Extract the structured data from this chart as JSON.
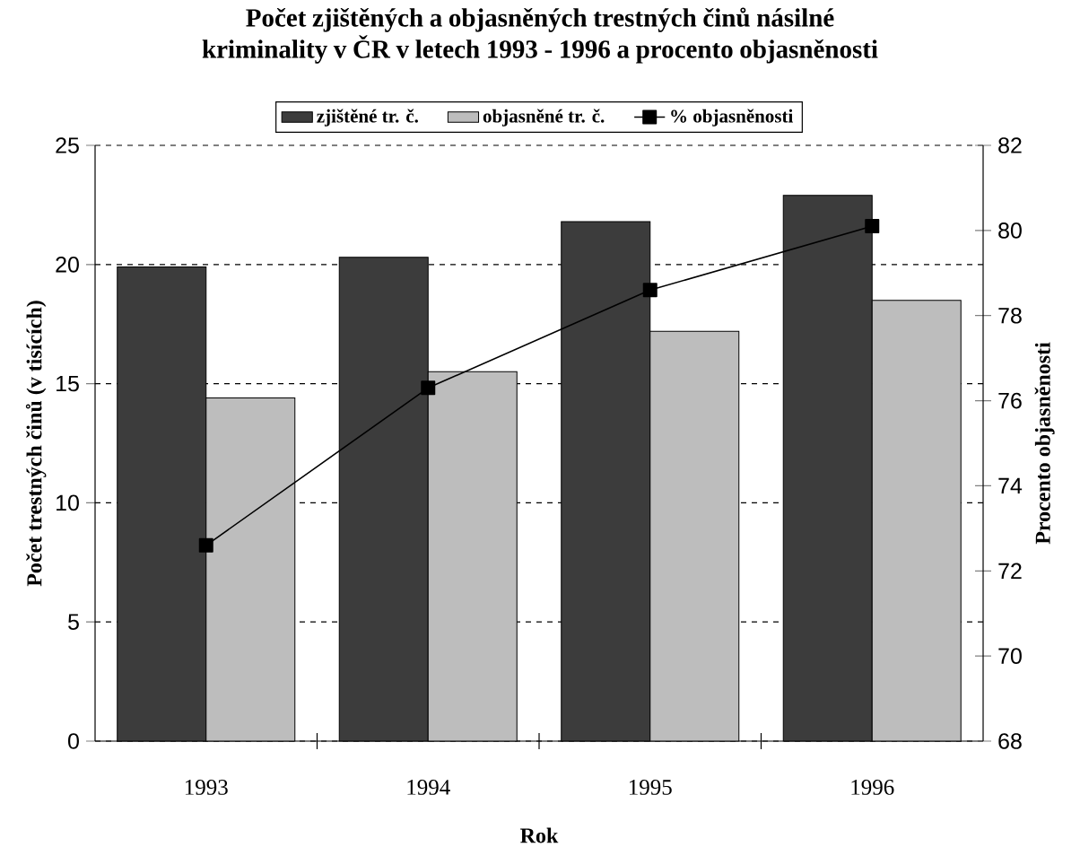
{
  "chart_data": {
    "type": "bar",
    "title": "Počet zjištěných a objasněných trestných činů násilné kriminality v ČR v letech 1993 - 1996 a procento objasněnosti",
    "xlabel": "Rok",
    "ylabel": "Počet trestných činů (v tisících)",
    "y2label": "Procento objasněnosti",
    "categories": [
      "1993",
      "1994",
      "1995",
      "1996"
    ],
    "series": [
      {
        "name": "zjištěné tr. č.",
        "color": "#3c3c3c",
        "values": [
          19.9,
          20.3,
          21.8,
          22.9
        ]
      },
      {
        "name": "objasněné tr. č.",
        "color": "#bdbdbd",
        "values": [
          14.4,
          15.5,
          17.2,
          18.5
        ]
      },
      {
        "name": "% objasněnosti",
        "type": "line",
        "axis": "y2",
        "color": "#000000",
        "values": [
          72.6,
          76.3,
          78.6,
          80.1
        ]
      }
    ],
    "ylim": [
      0,
      25
    ],
    "yticks": [
      0,
      5,
      10,
      15,
      20,
      25
    ],
    "y2lim": [
      68,
      82
    ],
    "y2ticks": [
      68,
      70,
      72,
      74,
      76,
      78,
      80,
      82
    ],
    "grid": "y",
    "marker": "square",
    "legend": "top"
  }
}
